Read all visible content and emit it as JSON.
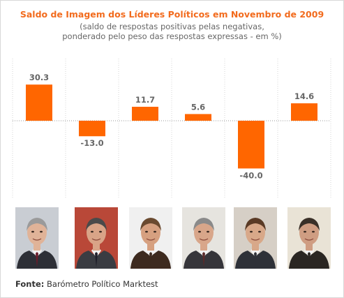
{
  "colors": {
    "bar": "#ff6600",
    "title": "#f26b1d",
    "value_label": "#666666",
    "gridline": "#d4d4d4",
    "zero_line": "#999999"
  },
  "chart_data": {
    "type": "bar",
    "title": "Saldo de Imagem dos Líderes Políticos em Novembro de 2009",
    "subtitle_line1": "(saldo de respostas positivas pelas negativas,",
    "subtitle_line2": "ponderado pelo peso das respostas expressas - em %)",
    "categories": [
      "",
      "",
      "",
      "",
      "",
      ""
    ],
    "values": [
      30.3,
      -13.0,
      11.7,
      5.6,
      -40.0,
      14.6
    ],
    "value_labels": [
      "30.3",
      "-13.0",
      "11.7",
      "5.6",
      "-40.0",
      "14.6"
    ],
    "ylim": [
      -50,
      40
    ],
    "grid": "vertical dotted separators between categories",
    "legend": "none",
    "xlabel": "",
    "ylabel": ""
  },
  "photos": [
    {
      "icon": "leader-photo-1",
      "bg": "#c9cdd3",
      "suit": "#2d2f36",
      "hair": "#9a9a9a",
      "skin": "#e0b398",
      "tie": "#6b1b2a"
    },
    {
      "icon": "leader-photo-2",
      "bg": "#b94838",
      "suit": "#3a3c42",
      "hair": "#4a4a4a",
      "skin": "#d9a487",
      "tie": "#1f1f2a"
    },
    {
      "icon": "leader-photo-3",
      "bg": "#f0f0f0",
      "suit": "#3d2a1f",
      "hair": "#6a4a30",
      "skin": "#d6a080",
      "tie": "#3d2a1f"
    },
    {
      "icon": "leader-photo-4",
      "bg": "#e6e4df",
      "suit": "#36353a",
      "hair": "#8a8a8a",
      "skin": "#d8a68a",
      "tie": "#5a2a2a"
    },
    {
      "icon": "leader-photo-5",
      "bg": "#d6cfc6",
      "suit": "#2e3138",
      "hair": "#5a3a25",
      "skin": "#d8a889",
      "tie": "#2e3138"
    },
    {
      "icon": "leader-photo-6",
      "bg": "#e9e3d6",
      "suit": "#2a2622",
      "hair": "#3a3028",
      "skin": "#cf9d82",
      "tie": "#2a2622"
    }
  ],
  "source": {
    "label": "Fonte:",
    "text": "Barómetro Político Marktest"
  }
}
